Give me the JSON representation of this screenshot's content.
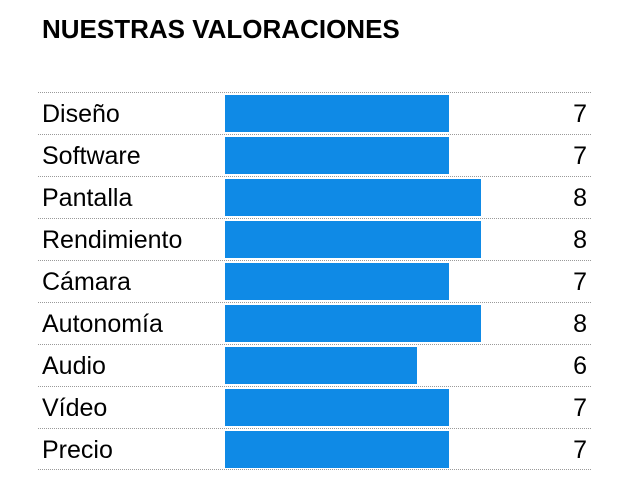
{
  "title": "NUESTRAS VALORACIONES",
  "colors": {
    "bar": "#0f8ae6"
  },
  "chart_data": {
    "type": "bar",
    "orientation": "horizontal",
    "categories": [
      "Diseño",
      "Software",
      "Pantalla",
      "Rendimiento",
      "Cámara",
      "Autonomía",
      "Audio",
      "Vídeo",
      "Precio"
    ],
    "values": [
      7,
      7,
      8,
      8,
      7,
      8,
      6,
      7,
      7
    ],
    "title": "NUESTRAS VALORACIONES",
    "xlabel": "",
    "ylabel": "",
    "xlim": [
      0,
      10
    ],
    "grid": false,
    "legend": "none"
  }
}
